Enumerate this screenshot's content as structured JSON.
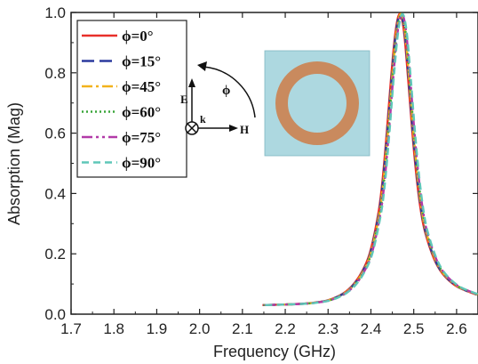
{
  "chart_data": {
    "type": "line",
    "xlabel": "Frequency (GHz)",
    "ylabel": "Absorption (Mag)",
    "xlim": [
      1.7,
      2.65
    ],
    "ylim": [
      0.0,
      1.0
    ],
    "x_ticks": [
      1.7,
      1.8,
      1.9,
      2.0,
      2.1,
      2.2,
      2.3,
      2.4,
      2.5,
      2.6
    ],
    "x_tick_labels": [
      "1.7",
      "1.8",
      "1.9",
      "2.0",
      "2.1",
      "2.2",
      "2.3",
      "2.4",
      "2.5",
      "2.6"
    ],
    "y_ticks": [
      0.0,
      0.2,
      0.4,
      0.6,
      0.8,
      1.0
    ],
    "y_tick_labels": [
      "0.0",
      "0.2",
      "0.4",
      "0.6",
      "0.8",
      "1.0"
    ],
    "legend_position": "top-left",
    "x": [
      2.15,
      2.2,
      2.25,
      2.28,
      2.3,
      2.32,
      2.34,
      2.36,
      2.38,
      2.4,
      2.42,
      2.43,
      2.44,
      2.45,
      2.46,
      2.47,
      2.48,
      2.49,
      2.5,
      2.51,
      2.52,
      2.53,
      2.55,
      2.57,
      2.6,
      2.63,
      2.65
    ],
    "series": [
      {
        "name": "ϕ=0°",
        "color": "#e8302a",
        "dash": "",
        "values": [
          0.03,
          0.032,
          0.035,
          0.04,
          0.045,
          0.055,
          0.07,
          0.095,
          0.135,
          0.2,
          0.33,
          0.44,
          0.6,
          0.78,
          0.93,
          0.995,
          0.94,
          0.78,
          0.6,
          0.45,
          0.34,
          0.27,
          0.185,
          0.135,
          0.095,
          0.075,
          0.065
        ]
      },
      {
        "name": "ϕ=15°",
        "color": "#2b3a9e",
        "dash": "14,6",
        "values": [
          0.03,
          0.032,
          0.035,
          0.04,
          0.045,
          0.055,
          0.07,
          0.095,
          0.135,
          0.2,
          0.33,
          0.44,
          0.6,
          0.78,
          0.93,
          0.995,
          0.94,
          0.78,
          0.6,
          0.45,
          0.34,
          0.27,
          0.185,
          0.135,
          0.095,
          0.075,
          0.065
        ]
      },
      {
        "name": "ϕ=45°",
        "color": "#f2b21c",
        "dash": "12,4,3,4",
        "values": [
          0.03,
          0.032,
          0.035,
          0.04,
          0.045,
          0.055,
          0.07,
          0.095,
          0.135,
          0.2,
          0.33,
          0.44,
          0.6,
          0.78,
          0.93,
          0.995,
          0.94,
          0.78,
          0.6,
          0.45,
          0.34,
          0.27,
          0.185,
          0.135,
          0.095,
          0.075,
          0.065
        ]
      },
      {
        "name": "ϕ=60°",
        "color": "#3aa53a",
        "dash": "2,3",
        "values": [
          0.03,
          0.032,
          0.035,
          0.04,
          0.045,
          0.055,
          0.07,
          0.095,
          0.135,
          0.2,
          0.33,
          0.44,
          0.6,
          0.78,
          0.93,
          0.995,
          0.94,
          0.78,
          0.6,
          0.45,
          0.34,
          0.27,
          0.185,
          0.135,
          0.095,
          0.075,
          0.065
        ]
      },
      {
        "name": "ϕ=75°",
        "color": "#b23aa8",
        "dash": "12,4,3,4,3,4",
        "values": [
          0.03,
          0.032,
          0.035,
          0.04,
          0.045,
          0.055,
          0.07,
          0.095,
          0.135,
          0.2,
          0.33,
          0.44,
          0.6,
          0.78,
          0.93,
          0.995,
          0.94,
          0.78,
          0.6,
          0.45,
          0.34,
          0.27,
          0.185,
          0.135,
          0.095,
          0.075,
          0.065
        ]
      },
      {
        "name": "ϕ=90°",
        "color": "#5fc7b8",
        "dash": "8,5",
        "values": [
          0.03,
          0.032,
          0.035,
          0.04,
          0.045,
          0.055,
          0.07,
          0.095,
          0.135,
          0.2,
          0.33,
          0.44,
          0.6,
          0.78,
          0.93,
          0.995,
          0.94,
          0.78,
          0.6,
          0.45,
          0.34,
          0.27,
          0.185,
          0.135,
          0.095,
          0.075,
          0.065
        ]
      }
    ],
    "diagram": {
      "e_label": "E",
      "h_label": "H",
      "k_label": "k",
      "phi_label": "ϕ"
    },
    "inset": {
      "square_color": "#add8e0",
      "ring_color": "#c98a5e"
    }
  }
}
